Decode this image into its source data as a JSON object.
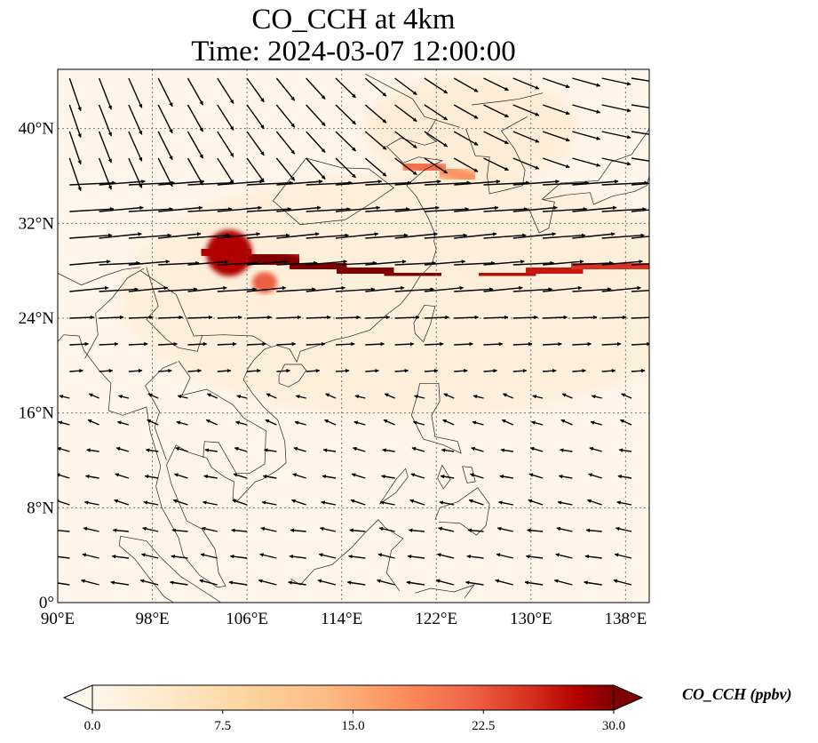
{
  "title": {
    "line1": "CO_CCH at 4km",
    "line2": "Time: 2024-03-07 12:00:00"
  },
  "map": {
    "projection": "PlateCarree",
    "lon_range": [
      90,
      140
    ],
    "lat_range": [
      0,
      45
    ],
    "lon_ticks": [
      {
        "value": 90,
        "label": "90°E"
      },
      {
        "value": 98,
        "label": "98°E"
      },
      {
        "value": 106,
        "label": "106°E"
      },
      {
        "value": 114,
        "label": "114°E"
      },
      {
        "value": 122,
        "label": "122°E"
      },
      {
        "value": 130,
        "label": "130°E"
      },
      {
        "value": 138,
        "label": "138°E"
      }
    ],
    "lat_ticks": [
      {
        "value": 0,
        "label": "0°"
      },
      {
        "value": 8,
        "label": "8°N"
      },
      {
        "value": 16,
        "label": "16°N"
      },
      {
        "value": 24,
        "label": "24°N"
      },
      {
        "value": 32,
        "label": "32°N"
      },
      {
        "value": 40,
        "label": "40°N"
      }
    ],
    "gridlines": true,
    "coastlines": true
  },
  "colorbar": {
    "label": "CO_CCH (ppbv)",
    "min": 0.0,
    "max": 30.0,
    "extend": "both",
    "cmap": "OrRd",
    "ticks": [
      "0.0",
      "7.5",
      "15.0",
      "22.5",
      "30.0"
    ],
    "tick_values": [
      0,
      7.5,
      15,
      22.5,
      30
    ]
  },
  "chart_data": {
    "type": "heatmap",
    "variable": "CO_CCH",
    "units": "ppbv",
    "plume_axis": [
      {
        "lon": 102.5,
        "lat": 29.8,
        "value": 26
      },
      {
        "lon": 106,
        "lat": 29.3,
        "value": 30
      },
      {
        "lon": 110,
        "lat": 28.6,
        "value": 30
      },
      {
        "lon": 114,
        "lat": 28.2,
        "value": 30
      },
      {
        "lon": 118,
        "lat": 27.8,
        "value": 30
      },
      {
        "lon": 122,
        "lat": 27.6,
        "value": 30
      },
      {
        "lon": 126,
        "lat": 27.6,
        "value": 28
      },
      {
        "lon": 130,
        "lat": 27.8,
        "value": 27
      },
      {
        "lon": 134,
        "lat": 28.2,
        "value": 26
      },
      {
        "lon": 140,
        "lat": 28.6,
        "value": 24
      }
    ],
    "secondary_plume": [
      {
        "lon": 119.5,
        "lat": 37.0,
        "value": 22
      },
      {
        "lon": 122.5,
        "lat": 36.5,
        "value": 20
      },
      {
        "lon": 125,
        "lat": 35.8,
        "value": 15
      }
    ],
    "wind_field": "vector arrows, mostly westerly north of 24°N, easterly south of 20°N"
  },
  "colors": {
    "background": "#fff5eb",
    "plume_high": "#7f0000",
    "plume_mid": "#d7301f",
    "plume_low": "#fdbb84"
  }
}
